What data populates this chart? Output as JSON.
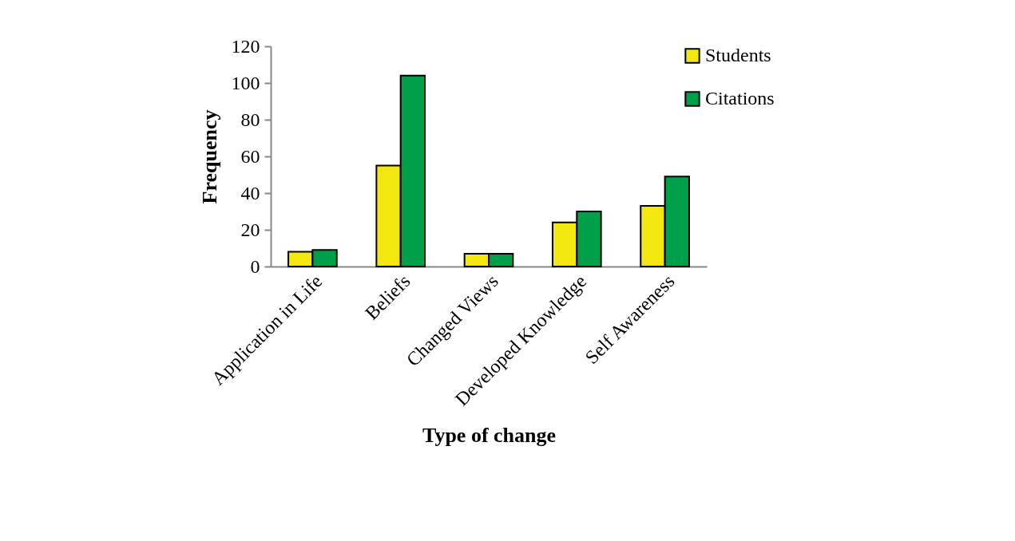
{
  "chart_data": {
    "type": "bar",
    "xlabel": "Type of change",
    "ylabel": "Frequency",
    "categories": [
      "Application in Life",
      "Beliefs",
      "Changed Views",
      "Developed Knowledge",
      "Self Awareness"
    ],
    "series": [
      {
        "name": "Students",
        "color": "#f2e80f",
        "values": [
          8,
          55,
          7,
          24,
          33
        ]
      },
      {
        "name": "Citations",
        "color": "#00a04a",
        "values": [
          9,
          104,
          7,
          30,
          49
        ]
      }
    ],
    "ylim": [
      0,
      120
    ],
    "yticks": [
      0,
      20,
      40,
      60,
      80,
      100,
      120
    ],
    "grid": false,
    "legend": "top right"
  }
}
